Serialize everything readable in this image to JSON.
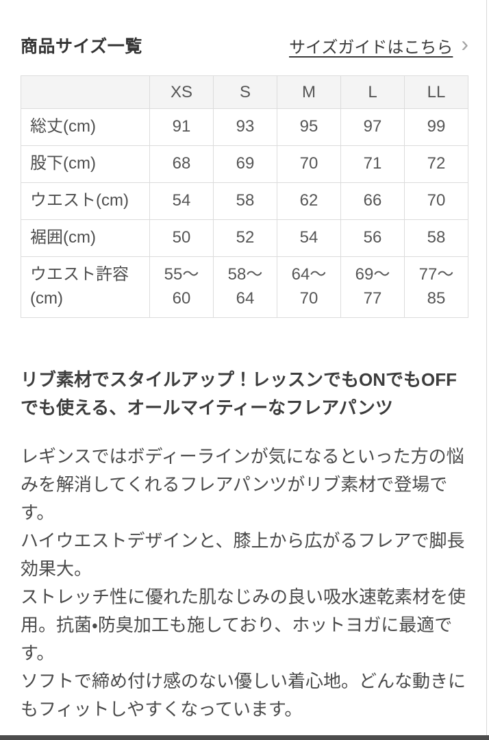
{
  "page": {
    "title": "商品サイズ一覧",
    "size_guide_link": "サイズガイドはこちら",
    "chevron_glyph": "›"
  },
  "size_table": {
    "columns": [
      "XS",
      "S",
      "M",
      "L",
      "LL"
    ],
    "rows": [
      {
        "label": "総丈(cm)",
        "values": [
          "91",
          "93",
          "95",
          "97",
          "99"
        ]
      },
      {
        "label": "股下(cm)",
        "values": [
          "68",
          "69",
          "70",
          "71",
          "72"
        ]
      },
      {
        "label": "ウエスト(cm)",
        "values": [
          "54",
          "58",
          "62",
          "66",
          "70"
        ]
      },
      {
        "label": "裾囲(cm)",
        "values": [
          "50",
          "52",
          "54",
          "56",
          "58"
        ]
      },
      {
        "label": "ウエスト許容\n(cm)",
        "values": [
          "55〜\n60",
          "58〜\n64",
          "64〜\n70",
          "69〜\n77",
          "77〜\n85"
        ]
      }
    ]
  },
  "description": {
    "headline": "リブ素材でスタイルアップ！レッスンでもONでもOFFでも使える、オールマイティーなフレアパンツ",
    "body": "レギンスではボディーラインが気になるといった方の悩みを解消してくれるフレアパンツがリブ素材で登場です。\nハイウエストデザインと、膝上から広がるフレアで脚長効果大。\nストレッチ性に優れた肌なじみの良い吸水速乾素材を使用。抗菌・防臭加工も施しており、ホットヨガに最適です。\nソフトで締め付け感のない優しい着心地。どんな動きにもフィットしやすくなっています。"
  },
  "colors": {
    "table_header_bg": "#f4f4f4",
    "table_border": "#dcdcdc",
    "text_primary": "#333333",
    "text_table": "#555555",
    "bottom_bar": "#4d4d4d"
  }
}
